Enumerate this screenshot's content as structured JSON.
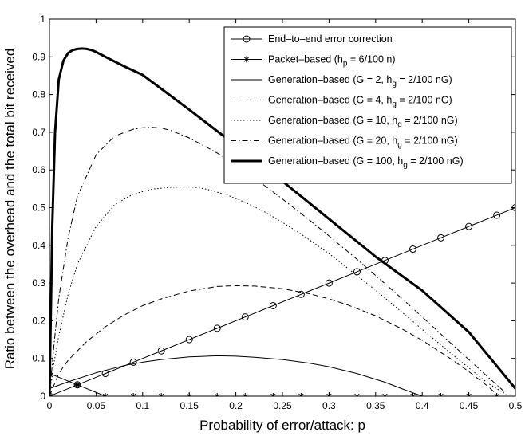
{
  "chart_data": {
    "type": "line",
    "xlabel": "Probability of error/attack: p",
    "ylabel": "Ratio between the overhead and the total bit received",
    "xlim": [
      0,
      0.5
    ],
    "ylim": [
      0,
      1
    ],
    "x_ticks": [
      0,
      0.05,
      0.1,
      0.15,
      0.2,
      0.25,
      0.3,
      0.35,
      0.4,
      0.45,
      0.5
    ],
    "x_tick_labels": [
      "0",
      "0.05",
      "0.1",
      "0.15",
      "0.2",
      "0.25",
      "0.3",
      "0.35",
      "0.4",
      "0.45",
      "0.5"
    ],
    "y_ticks": [
      0,
      0.1,
      0.2,
      0.3,
      0.4,
      0.5,
      0.6,
      0.7,
      0.8,
      0.9,
      1
    ],
    "y_tick_labels": [
      "0",
      "0.1",
      "0.2",
      "0.3",
      "0.4",
      "0.5",
      "0.6",
      "0.7",
      "0.8",
      "0.9",
      "1"
    ],
    "grid": false,
    "legend_position": "top-right",
    "series": [
      {
        "name": "End–to–end error correction",
        "style": "solid-circle",
        "x": [
          0,
          0.03,
          0.06,
          0.09,
          0.12,
          0.15,
          0.18,
          0.21,
          0.24,
          0.27,
          0.3,
          0.33,
          0.36,
          0.39,
          0.42,
          0.45,
          0.48,
          0.5
        ],
        "y": [
          0,
          0.03,
          0.06,
          0.09,
          0.12,
          0.15,
          0.18,
          0.21,
          0.24,
          0.27,
          0.3,
          0.33,
          0.36,
          0.39,
          0.42,
          0.45,
          0.48,
          0.5
        ]
      },
      {
        "name": "Packet–based (h_p = 6/100 n)",
        "style": "solid-star",
        "x": [
          0,
          0.03,
          0.06,
          0.09,
          0.12,
          0.15,
          0.18,
          0.21,
          0.24,
          0.27,
          0.3,
          0.33,
          0.36,
          0.39,
          0.42,
          0.45,
          0.48
        ],
        "y": [
          0.06,
          0.03,
          0,
          0,
          0,
          0,
          0,
          0,
          0,
          0,
          0,
          0,
          0,
          0,
          0,
          0,
          0
        ]
      },
      {
        "name": "Generation–based (G = 2, h_g = 2/100 nG)",
        "style": "solid-thin",
        "x": [
          0,
          0.02,
          0.05,
          0.08,
          0.1,
          0.12,
          0.15,
          0.18,
          0.2,
          0.22,
          0.25,
          0.28,
          0.3,
          0.33,
          0.36,
          0.38,
          0.4
        ],
        "y": [
          0.02,
          0.038,
          0.062,
          0.081,
          0.09,
          0.097,
          0.104,
          0.107,
          0.106,
          0.103,
          0.097,
          0.087,
          0.078,
          0.06,
          0.037,
          0.018,
          0
        ]
      },
      {
        "name": "Generation–based (G = 4, h_g = 2/100 nG)",
        "style": "dashed",
        "x": [
          0,
          0.01,
          0.02,
          0.04,
          0.06,
          0.08,
          0.1,
          0.12,
          0.15,
          0.18,
          0.2,
          0.22,
          0.25,
          0.28,
          0.3,
          0.32,
          0.35,
          0.38,
          0.4,
          0.43,
          0.45,
          0.47,
          0.48
        ],
        "y": [
          0,
          0.06,
          0.095,
          0.145,
          0.184,
          0.215,
          0.24,
          0.258,
          0.279,
          0.291,
          0.293,
          0.292,
          0.285,
          0.271,
          0.258,
          0.242,
          0.213,
          0.176,
          0.148,
          0.1,
          0.065,
          0.027,
          0.005
        ]
      },
      {
        "name": "Generation–based (G = 10, h_g = 2/100 nG)",
        "style": "dotted",
        "x": [
          0,
          0.005,
          0.01,
          0.02,
          0.03,
          0.05,
          0.07,
          0.09,
          0.11,
          0.13,
          0.15,
          0.16,
          0.17,
          0.19,
          0.21,
          0.23,
          0.25,
          0.27,
          0.3,
          0.33,
          0.35,
          0.38,
          0.4,
          0.43,
          0.45,
          0.47,
          0.49
        ],
        "y": [
          0,
          0.09,
          0.16,
          0.27,
          0.35,
          0.45,
          0.508,
          0.536,
          0.549,
          0.554,
          0.555,
          0.553,
          0.548,
          0.534,
          0.514,
          0.49,
          0.461,
          0.43,
          0.378,
          0.32,
          0.281,
          0.219,
          0.177,
          0.115,
          0.075,
          0.035,
          0.005
        ]
      },
      {
        "name": "Generation–based (G = 20, h_g = 2/100 nG)",
        "style": "dashdot",
        "x": [
          0,
          0.005,
          0.01,
          0.02,
          0.03,
          0.05,
          0.07,
          0.09,
          0.1,
          0.11,
          0.12,
          0.13,
          0.15,
          0.18,
          0.2,
          0.23,
          0.25,
          0.28,
          0.3,
          0.33,
          0.35,
          0.38,
          0.4,
          0.43,
          0.45,
          0.47,
          0.49
        ],
        "y": [
          0,
          0.14,
          0.26,
          0.42,
          0.53,
          0.64,
          0.69,
          0.708,
          0.712,
          0.713,
          0.711,
          0.705,
          0.685,
          0.645,
          0.613,
          0.56,
          0.523,
          0.465,
          0.425,
          0.363,
          0.32,
          0.255,
          0.21,
          0.142,
          0.097,
          0.052,
          0.008
        ]
      },
      {
        "name": "Generation–based (G = 100, h_g = 2/100 nG)",
        "style": "solid-thick",
        "x": [
          0,
          0.003,
          0.006,
          0.01,
          0.015,
          0.02,
          0.025,
          0.03,
          0.035,
          0.04,
          0.045,
          0.05,
          0.06,
          0.08,
          0.1,
          0.15,
          0.2,
          0.25,
          0.3,
          0.35,
          0.4,
          0.45,
          0.5
        ],
        "y": [
          0,
          0.45,
          0.7,
          0.84,
          0.89,
          0.91,
          0.918,
          0.921,
          0.922,
          0.921,
          0.918,
          0.913,
          0.9,
          0.875,
          0.852,
          0.76,
          0.665,
          0.57,
          0.47,
          0.37,
          0.28,
          0.17,
          0.02
        ]
      }
    ]
  }
}
